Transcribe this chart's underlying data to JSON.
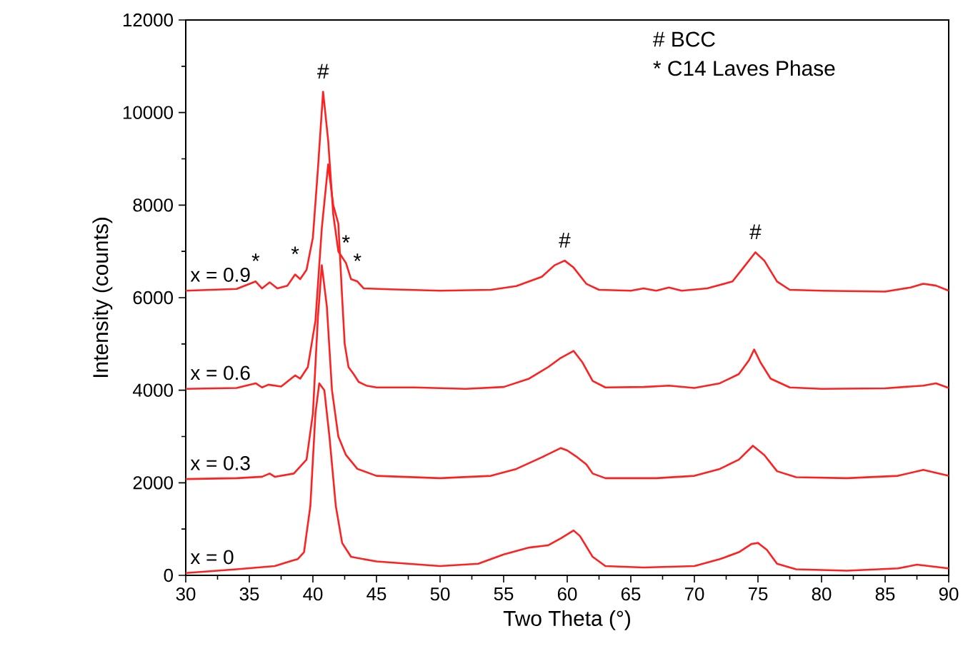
{
  "chart_data": {
    "type": "line",
    "xlabel": "Two Theta (°)",
    "ylabel": "Intensity (counts)",
    "xlim": [
      30,
      90
    ],
    "ylim": [
      0,
      12000
    ],
    "xticks": [
      30,
      35,
      40,
      45,
      50,
      55,
      60,
      65,
      70,
      75,
      80,
      85,
      90
    ],
    "yticks": [
      0,
      2000,
      4000,
      6000,
      8000,
      10000,
      12000
    ],
    "grid": false,
    "legend": false,
    "marker": "none",
    "line_style": "solid",
    "series": [
      {
        "name": "x = 0.9",
        "color": "#ff2020",
        "x": [
          30,
          32,
          34,
          35.5,
          36,
          36.6,
          37.2,
          38,
          38.6,
          39,
          39.5,
          40,
          40.4,
          40.8,
          41.2,
          41.6,
          42,
          42.6,
          43,
          43.5,
          44,
          46,
          50,
          54,
          56,
          58,
          59,
          59.8,
          60.5,
          61.5,
          62.5,
          65,
          66,
          67,
          68,
          69,
          71,
          73,
          74,
          74.8,
          75.5,
          76.5,
          77.5,
          80,
          85,
          87,
          88,
          89,
          90
        ],
        "values": [
          6150,
          6170,
          6190,
          6350,
          6200,
          6330,
          6200,
          6260,
          6500,
          6400,
          6600,
          7300,
          8800,
          10450,
          9400,
          7800,
          7000,
          6750,
          6400,
          6350,
          6200,
          6180,
          6150,
          6170,
          6250,
          6450,
          6700,
          6800,
          6650,
          6300,
          6170,
          6150,
          6200,
          6150,
          6220,
          6150,
          6200,
          6350,
          6700,
          6980,
          6800,
          6350,
          6170,
          6150,
          6130,
          6220,
          6300,
          6260,
          6150
        ]
      },
      {
        "name": "x = 0.6",
        "color": "#ff2020",
        "x": [
          30,
          34,
          35.5,
          36,
          36.5,
          37.5,
          38.6,
          39,
          39.6,
          40.2,
          40.7,
          41.2,
          41.6,
          42,
          42.3,
          42.5,
          42.8,
          43.2,
          43.6,
          44.2,
          45,
          48,
          52,
          55,
          57,
          58.5,
          59.5,
          60.5,
          61.2,
          62,
          63,
          66,
          68,
          70,
          72,
          73.5,
          74.3,
          74.7,
          75.2,
          76,
          77.5,
          80,
          85,
          88,
          89,
          90
        ],
        "values": [
          4030,
          4050,
          4150,
          4060,
          4120,
          4080,
          4320,
          4250,
          4500,
          5500,
          7500,
          8880,
          8000,
          7600,
          6000,
          5000,
          4500,
          4350,
          4180,
          4100,
          4060,
          4060,
          4030,
          4070,
          4250,
          4500,
          4700,
          4850,
          4600,
          4200,
          4060,
          4070,
          4100,
          4050,
          4150,
          4350,
          4650,
          4880,
          4600,
          4250,
          4060,
          4030,
          4040,
          4100,
          4150,
          4050
        ]
      },
      {
        "name": "x = 0.3",
        "color": "#ff2020",
        "x": [
          30,
          34,
          36,
          36.6,
          37,
          38.5,
          39.5,
          40,
          40.4,
          40.7,
          41.1,
          41.5,
          42,
          42.6,
          43.5,
          45,
          50,
          54,
          56,
          58,
          59.5,
          60,
          60.8,
          61.5,
          62,
          63,
          67,
          70,
          72,
          73.5,
          74.6,
          75.5,
          76.5,
          78,
          82,
          86,
          88,
          90
        ],
        "values": [
          2080,
          2100,
          2130,
          2200,
          2130,
          2200,
          2500,
          3500,
          5600,
          6700,
          5800,
          4000,
          3000,
          2600,
          2300,
          2150,
          2100,
          2150,
          2300,
          2550,
          2750,
          2700,
          2550,
          2400,
          2200,
          2100,
          2100,
          2150,
          2300,
          2500,
          2800,
          2600,
          2250,
          2120,
          2100,
          2150,
          2280,
          2150
        ]
      },
      {
        "name": "x = 0",
        "color": "#ff2020",
        "x": [
          30,
          34,
          37,
          38.4,
          38.8,
          39.3,
          39.8,
          40.2,
          40.5,
          40.9,
          41.3,
          41.8,
          42.3,
          43,
          45,
          50,
          53,
          55,
          57,
          58.5,
          59.5,
          60.5,
          61,
          62,
          63,
          66,
          70,
          72,
          73.5,
          74.5,
          75,
          75.7,
          76.5,
          78,
          82,
          86,
          87.5,
          90
        ],
        "values": [
          50,
          130,
          200,
          320,
          350,
          500,
          1500,
          3500,
          4150,
          4000,
          3000,
          1500,
          700,
          400,
          300,
          200,
          250,
          450,
          600,
          650,
          800,
          970,
          850,
          400,
          200,
          170,
          200,
          350,
          500,
          680,
          700,
          550,
          250,
          130,
          100,
          150,
          230,
          150
        ]
      }
    ],
    "annotations": [
      "# BCC",
      "* C14 Laves Phase",
      {
        "text": "#",
        "x": 40.8,
        "y": 10450
      },
      {
        "text": "#",
        "x": 59.8,
        "y": 6800
      },
      {
        "text": "#",
        "x": 74.8,
        "y": 6980
      },
      {
        "text": "*",
        "x": 35.5,
        "y": 6350
      },
      {
        "text": "*",
        "x": 38.6,
        "y": 6500
      },
      {
        "text": "*",
        "x": 42.6,
        "y": 6750
      },
      {
        "text": "*",
        "x": 43.5,
        "y": 6350
      }
    ]
  }
}
